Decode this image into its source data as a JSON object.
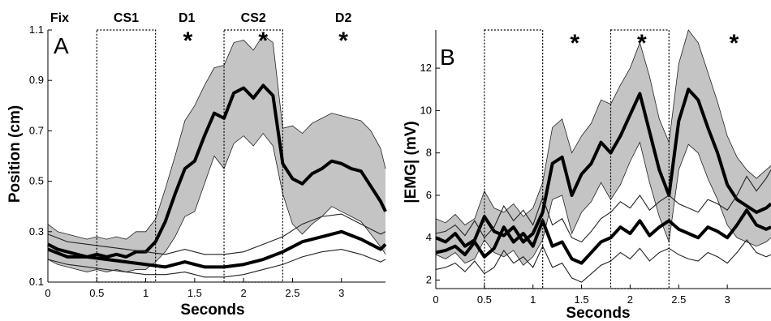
{
  "chart_data": [
    {
      "panel_label": "A",
      "type": "line",
      "xlabel": "Seconds",
      "ylabel": "Position (cm)",
      "xlim": [
        0,
        3.45
      ],
      "ylim": [
        0.1,
        1.1
      ],
      "xticks": [
        "0",
        "0.5",
        "1",
        "1.5",
        "2",
        "2.5",
        "3"
      ],
      "yticks": [
        "0.1",
        "0.3",
        "0.5",
        "0.7",
        "0.9",
        "1.1"
      ],
      "phase_labels": [
        {
          "text": "Fix",
          "x": 0.12
        },
        {
          "text": "CS1",
          "x": 0.8
        },
        {
          "text": "D1",
          "x": 1.42
        },
        {
          "text": "CS2",
          "x": 2.1
        },
        {
          "text": "D2",
          "x": 3.02
        }
      ],
      "asterisks": [
        {
          "text": "*",
          "x": 1.43
        },
        {
          "text": "*",
          "x": 2.2
        },
        {
          "text": "*",
          "x": 3.02
        }
      ],
      "boxes": [
        [
          0.5,
          1.1
        ],
        [
          1.8,
          2.4
        ]
      ],
      "series": [
        {
          "style": "thick-shaded",
          "x": [
            0,
            0.1,
            0.2,
            0.3,
            0.4,
            0.5,
            0.6,
            0.7,
            0.8,
            0.9,
            1.0,
            1.1,
            1.2,
            1.3,
            1.4,
            1.5,
            1.6,
            1.7,
            1.8,
            1.9,
            2.0,
            2.1,
            2.2,
            2.3,
            2.4,
            2.5,
            2.6,
            2.7,
            2.8,
            2.9,
            3.0,
            3.1,
            3.2,
            3.3,
            3.4,
            3.45
          ],
          "values": [
            0.25,
            0.23,
            0.22,
            0.21,
            0.2,
            0.21,
            0.2,
            0.21,
            0.2,
            0.22,
            0.22,
            0.26,
            0.34,
            0.45,
            0.55,
            0.58,
            0.68,
            0.77,
            0.75,
            0.85,
            0.87,
            0.83,
            0.88,
            0.84,
            0.57,
            0.51,
            0.49,
            0.53,
            0.55,
            0.58,
            0.57,
            0.55,
            0.54,
            0.48,
            0.42,
            0.38
          ],
          "upper": [
            0.33,
            0.3,
            0.29,
            0.28,
            0.27,
            0.28,
            0.27,
            0.28,
            0.27,
            0.3,
            0.3,
            0.35,
            0.47,
            0.6,
            0.74,
            0.8,
            0.88,
            0.95,
            0.96,
            1.05,
            1.06,
            1.02,
            1.08,
            1.05,
            0.71,
            0.72,
            0.69,
            0.73,
            0.75,
            0.77,
            0.76,
            0.75,
            0.74,
            0.7,
            0.63,
            0.55
          ],
          "lower": [
            0.19,
            0.17,
            0.16,
            0.15,
            0.14,
            0.15,
            0.14,
            0.15,
            0.14,
            0.15,
            0.15,
            0.18,
            0.22,
            0.28,
            0.36,
            0.38,
            0.49,
            0.6,
            0.55,
            0.65,
            0.68,
            0.64,
            0.69,
            0.64,
            0.45,
            0.33,
            0.29,
            0.33,
            0.36,
            0.4,
            0.38,
            0.36,
            0.34,
            0.29,
            0.24,
            0.21
          ]
        },
        {
          "style": "thick-with-bounds",
          "x": [
            0,
            0.2,
            0.4,
            0.6,
            0.8,
            1.0,
            1.2,
            1.4,
            1.6,
            1.8,
            2.0,
            2.2,
            2.4,
            2.6,
            2.8,
            3.0,
            3.2,
            3.4,
            3.45
          ],
          "values": [
            0.23,
            0.2,
            0.2,
            0.19,
            0.18,
            0.17,
            0.16,
            0.18,
            0.16,
            0.16,
            0.17,
            0.19,
            0.22,
            0.26,
            0.28,
            0.3,
            0.27,
            0.23,
            0.25
          ],
          "upper": [
            0.29,
            0.26,
            0.25,
            0.24,
            0.23,
            0.22,
            0.21,
            0.23,
            0.21,
            0.21,
            0.22,
            0.25,
            0.28,
            0.33,
            0.36,
            0.37,
            0.33,
            0.29,
            0.3
          ],
          "lower": [
            0.19,
            0.17,
            0.16,
            0.15,
            0.14,
            0.13,
            0.13,
            0.14,
            0.12,
            0.12,
            0.13,
            0.15,
            0.17,
            0.2,
            0.22,
            0.23,
            0.21,
            0.18,
            0.19
          ]
        }
      ]
    },
    {
      "panel_label": "B",
      "type": "line",
      "xlabel": "Seconds",
      "ylabel": "|EMG| (mV)",
      "xlim": [
        0,
        3.45
      ],
      "ylim": [
        1.6,
        13.8
      ],
      "xticks": [
        "0",
        "0.5",
        "1",
        "1.5",
        "2",
        "2.5",
        "3"
      ],
      "yticks": [
        "2",
        "4",
        "6",
        "8",
        "10",
        "12"
      ],
      "asterisks": [
        {
          "text": "*",
          "x": 1.43
        },
        {
          "text": "*",
          "x": 2.12
        },
        {
          "text": "*",
          "x": 3.07
        }
      ],
      "boxes": [
        [
          0.5,
          1.1
        ],
        [
          1.8,
          2.4
        ]
      ],
      "series": [
        {
          "style": "thick-shaded",
          "x": [
            0,
            0.1,
            0.2,
            0.3,
            0.4,
            0.5,
            0.6,
            0.7,
            0.8,
            0.9,
            1.0,
            1.1,
            1.2,
            1.3,
            1.4,
            1.5,
            1.6,
            1.7,
            1.8,
            1.9,
            2.0,
            2.1,
            2.2,
            2.3,
            2.4,
            2.5,
            2.6,
            2.7,
            2.8,
            2.9,
            3.0,
            3.1,
            3.2,
            3.3,
            3.4,
            3.45
          ],
          "values": [
            4.0,
            3.8,
            4.2,
            3.6,
            3.9,
            5.0,
            4.3,
            4.1,
            4.5,
            3.8,
            4.2,
            5.2,
            7.5,
            7.8,
            6.0,
            7.0,
            7.5,
            8.5,
            8.0,
            8.8,
            9.8,
            10.8,
            9.0,
            7.2,
            6.0,
            9.5,
            11.0,
            10.5,
            9.2,
            8.0,
            6.5,
            5.8,
            5.5,
            5.2,
            5.4,
            5.6
          ],
          "upper": [
            4.9,
            4.7,
            5.1,
            4.6,
            4.9,
            6.2,
            5.4,
            5.2,
            5.6,
            5.0,
            5.4,
            6.6,
            9.2,
            9.6,
            8.0,
            8.8,
            9.4,
            10.5,
            10.3,
            11.2,
            12.0,
            13.2,
            11.6,
            9.6,
            8.5,
            12.2,
            13.8,
            13.2,
            11.8,
            10.4,
            8.8,
            7.8,
            7.2,
            6.8,
            7.2,
            7.4
          ],
          "lower": [
            3.2,
            3.0,
            3.3,
            2.8,
            3.0,
            3.9,
            3.3,
            3.1,
            3.4,
            2.7,
            3.1,
            3.9,
            5.8,
            6.0,
            4.2,
            5.2,
            5.7,
            6.6,
            5.8,
            6.5,
            7.6,
            8.5,
            6.6,
            5.0,
            3.8,
            7.2,
            8.4,
            8.0,
            6.8,
            5.8,
            4.6,
            4.0,
            3.8,
            3.6,
            3.8,
            4.0
          ]
        },
        {
          "style": "thick-with-bounds",
          "x": [
            0,
            0.1,
            0.2,
            0.3,
            0.4,
            0.5,
            0.6,
            0.7,
            0.8,
            0.9,
            1.0,
            1.1,
            1.2,
            1.3,
            1.4,
            1.5,
            1.6,
            1.7,
            1.8,
            1.9,
            2.0,
            2.1,
            2.2,
            2.3,
            2.4,
            2.5,
            2.6,
            2.7,
            2.8,
            2.9,
            3.0,
            3.1,
            3.2,
            3.3,
            3.4,
            3.45
          ],
          "values": [
            3.3,
            3.4,
            3.6,
            3.2,
            3.8,
            3.1,
            3.5,
            4.5,
            3.8,
            4.2,
            3.6,
            4.8,
            3.6,
            3.8,
            3.0,
            2.8,
            3.3,
            3.8,
            4.0,
            4.5,
            4.2,
            4.8,
            4.1,
            4.5,
            4.8,
            4.4,
            4.2,
            4.0,
            4.5,
            4.3,
            4.0,
            4.6,
            5.3,
            4.6,
            4.4,
            4.5
          ],
          "upper": [
            4.2,
            4.3,
            4.6,
            4.1,
            4.8,
            4.0,
            4.5,
            5.5,
            4.8,
            5.3,
            4.6,
            5.9,
            4.6,
            4.9,
            4.0,
            3.8,
            4.3,
            4.9,
            5.2,
            5.7,
            5.4,
            6.0,
            5.3,
            5.7,
            6.0,
            5.6,
            5.4,
            5.2,
            5.8,
            5.6,
            5.3,
            6.0,
            6.9,
            6.2,
            6.8,
            7.2
          ],
          "lower": [
            2.5,
            2.6,
            2.8,
            2.4,
            2.9,
            2.3,
            2.6,
            3.4,
            2.8,
            3.1,
            2.6,
            3.6,
            2.6,
            2.8,
            2.1,
            1.9,
            2.3,
            2.7,
            2.9,
            3.3,
            3.0,
            3.5,
            2.9,
            3.3,
            3.5,
            3.2,
            3.0,
            2.9,
            3.3,
            3.1,
            2.8,
            3.3,
            3.9,
            3.3,
            3.1,
            3.2
          ]
        }
      ]
    }
  ]
}
